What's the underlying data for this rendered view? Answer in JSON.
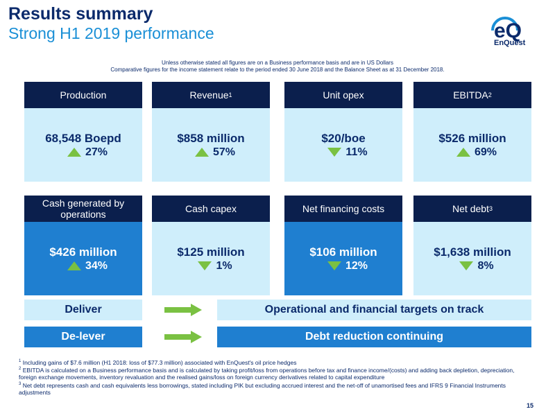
{
  "header": {
    "title": "Results summary",
    "subtitle": "Strong H1 2019 performance"
  },
  "logo": {
    "mark": "eQ",
    "text": "EnQuest",
    "icon": "enquest-logo"
  },
  "notes": {
    "line1": "Unless otherwise stated all figures are on a Business performance basis and are in US Dollars",
    "line2": "Comparative figures for the income statement relate to the period ended 30 June 2018 and the Balance Sheet as at 31 December 2018."
  },
  "kpis_top": [
    {
      "label": "Production",
      "sup": "",
      "value": "68,548 Boepd",
      "direction": "up",
      "change": "27%"
    },
    {
      "label": "Revenue",
      "sup": "1",
      "value": "$858 million",
      "direction": "up",
      "change": "57%"
    },
    {
      "label": "Unit opex",
      "sup": "",
      "value": "$20/boe",
      "direction": "down",
      "change": "11%"
    },
    {
      "label": "EBITDA",
      "sup": "2",
      "value": "$526 million",
      "direction": "up",
      "change": "69%"
    }
  ],
  "kpis_bottom": [
    {
      "label": "Cash generated by operations",
      "sup": "",
      "value": "$426 million",
      "direction": "up",
      "change": "34%"
    },
    {
      "label": "Cash capex",
      "sup": "",
      "value": "$125 million",
      "direction": "down",
      "change": "1%"
    },
    {
      "label": "Net financing costs",
      "sup": "",
      "value": "$106 million",
      "direction": "down",
      "change": "12%"
    },
    {
      "label": "Net debt",
      "sup": "3",
      "value": "$1,638 million",
      "direction": "down",
      "change": "8%"
    }
  ],
  "summary": {
    "deliver": {
      "label": "Deliver",
      "text": "Operational and financial targets on track"
    },
    "delever": {
      "label": "De-lever",
      "text": "Debt reduction continuing"
    }
  },
  "footnotes": {
    "f1_num": "1",
    "f1": "Including gains of $7.6 million (H1 2018: loss of $77.3 million) associated with EnQuest's oil price hedges",
    "f2_num": "2",
    "f2": "EBITDA is calculated on a Business performance basis and is calculated by taking profit/loss from operations before tax and finance income/(costs) and adding back depletion, depreciation, foreign exchange movements, inventory revaluation and the realised gains/loss on foreign currency derivatives related to capital expenditure",
    "f3_num": "3",
    "f3": "Net debt represents cash and cash equivalents less borrowings, stated including PIK but excluding accrued interest and the net-off of unamortised fees and IFRS 9 Financial Instruments adjustments"
  },
  "page_number": "15",
  "colors": {
    "navy": "#0b1f4d",
    "light_blue": "#cfeefb",
    "mid_blue": "#1f7fd0",
    "accent_blue": "#1a8fd6",
    "green": "#7ac142"
  }
}
